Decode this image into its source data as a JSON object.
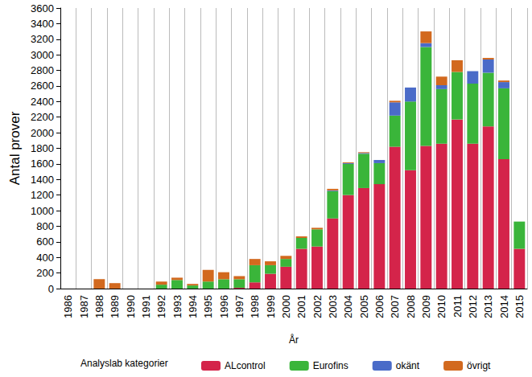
{
  "chart_data": {
    "type": "bar",
    "stacked": true,
    "grid": true,
    "legend": "bottom-left",
    "legend_title": "Analyslab kategorier",
    "x_label": "År",
    "y_label": "Antal prover",
    "categories": [
      "1986",
      "1987",
      "1988",
      "1989",
      "1990",
      "1991",
      "1992",
      "1993",
      "1994",
      "1995",
      "1996",
      "1997",
      "1998",
      "1999",
      "2000",
      "2001",
      "2002",
      "2003",
      "2004",
      "2005",
      "2006",
      "2007",
      "2008",
      "2009",
      "2010",
      "2011",
      "2012",
      "2013",
      "2014",
      "2015"
    ],
    "ylim": [
      0,
      3600
    ],
    "yticks": [
      0,
      200,
      400,
      600,
      800,
      1000,
      1200,
      1400,
      1600,
      1800,
      2000,
      2200,
      2400,
      2600,
      2800,
      3000,
      3200,
      3400,
      3600
    ],
    "series": [
      {
        "name": "ALcontrol",
        "color": "#d4244a",
        "values": [
          0,
          0,
          0,
          0,
          0,
          0,
          0,
          0,
          0,
          0,
          0,
          10,
          80,
          190,
          280,
          510,
          540,
          900,
          1200,
          1290,
          1340,
          1820,
          1520,
          1830,
          1860,
          2170,
          1860,
          2080,
          1660,
          510
        ]
      },
      {
        "name": "Eurofins",
        "color": "#3ab53a",
        "values": [
          0,
          0,
          0,
          0,
          0,
          0,
          50,
          110,
          40,
          90,
          120,
          110,
          220,
          110,
          100,
          140,
          220,
          350,
          400,
          440,
          270,
          400,
          880,
          1270,
          700,
          610,
          770,
          690,
          910,
          350
        ]
      },
      {
        "name": "okänt",
        "color": "#4a6bc8",
        "values": [
          0,
          0,
          0,
          0,
          0,
          0,
          0,
          0,
          0,
          0,
          0,
          0,
          0,
          0,
          0,
          0,
          0,
          10,
          10,
          10,
          40,
          170,
          180,
          50,
          50,
          0,
          160,
          170,
          80,
          0
        ]
      },
      {
        "name": "övrigt",
        "color": "#d2691e",
        "values": [
          0,
          0,
          120,
          70,
          0,
          0,
          40,
          30,
          20,
          150,
          90,
          40,
          80,
          50,
          40,
          20,
          20,
          20,
          10,
          10,
          0,
          20,
          0,
          150,
          110,
          150,
          0,
          20,
          20,
          0
        ]
      }
    ]
  }
}
